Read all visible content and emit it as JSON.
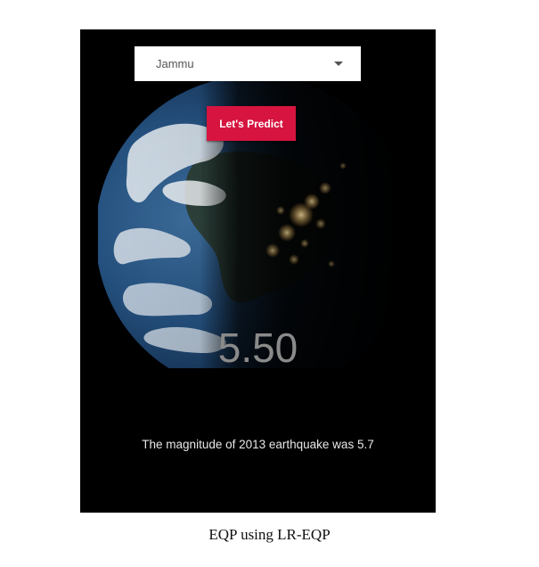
{
  "app": {
    "location_select": {
      "selected_value": "Jammu"
    },
    "predict_button_label": "Let's Predict",
    "predicted_magnitude": "5.50",
    "history_text": "The magnitude of 2013 earthquake was 5.7",
    "background_image": "earth-night-globe",
    "colors": {
      "screen_background": "#000000",
      "button_background": "#d6143f",
      "magnitude_text": "#8a8a8a"
    }
  },
  "caption": "EQP using LR-EQP"
}
